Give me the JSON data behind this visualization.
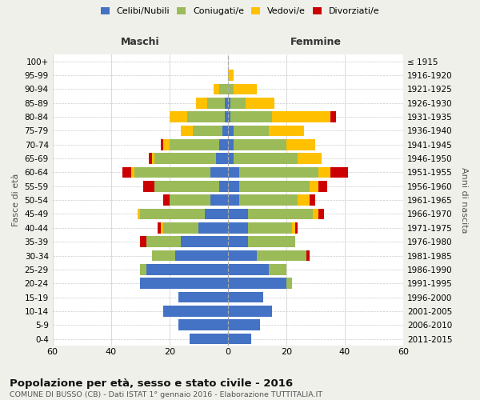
{
  "age_groups": [
    "0-4",
    "5-9",
    "10-14",
    "15-19",
    "20-24",
    "25-29",
    "30-34",
    "35-39",
    "40-44",
    "45-49",
    "50-54",
    "55-59",
    "60-64",
    "65-69",
    "70-74",
    "75-79",
    "80-84",
    "85-89",
    "90-94",
    "95-99",
    "100+"
  ],
  "birth_years": [
    "2011-2015",
    "2006-2010",
    "2001-2005",
    "1996-2000",
    "1991-1995",
    "1986-1990",
    "1981-1985",
    "1976-1980",
    "1971-1975",
    "1966-1970",
    "1961-1965",
    "1956-1960",
    "1951-1955",
    "1946-1950",
    "1941-1945",
    "1936-1940",
    "1931-1935",
    "1926-1930",
    "1921-1925",
    "1916-1920",
    "≤ 1915"
  ],
  "maschi": {
    "celibi": [
      13,
      17,
      22,
      17,
      30,
      28,
      18,
      16,
      10,
      8,
      6,
      3,
      6,
      4,
      3,
      2,
      1,
      1,
      0,
      0,
      0
    ],
    "coniugati": [
      0,
      0,
      0,
      0,
      0,
      2,
      8,
      12,
      12,
      22,
      14,
      22,
      26,
      21,
      17,
      10,
      13,
      6,
      3,
      0,
      0
    ],
    "vedovi": [
      0,
      0,
      0,
      0,
      0,
      0,
      0,
      0,
      1,
      1,
      0,
      0,
      1,
      1,
      2,
      4,
      6,
      4,
      2,
      0,
      0
    ],
    "divorziati": [
      0,
      0,
      0,
      0,
      0,
      0,
      0,
      2,
      1,
      0,
      2,
      4,
      3,
      1,
      1,
      0,
      0,
      0,
      0,
      0,
      0
    ]
  },
  "femmine": {
    "nubili": [
      8,
      11,
      15,
      12,
      20,
      14,
      10,
      7,
      7,
      7,
      4,
      4,
      4,
      2,
      2,
      2,
      1,
      1,
      0,
      0,
      0
    ],
    "coniugate": [
      0,
      0,
      0,
      0,
      2,
      6,
      17,
      16,
      15,
      22,
      20,
      24,
      27,
      22,
      18,
      12,
      14,
      5,
      2,
      0,
      0
    ],
    "vedove": [
      0,
      0,
      0,
      0,
      0,
      0,
      0,
      0,
      1,
      2,
      4,
      3,
      4,
      8,
      10,
      12,
      20,
      10,
      8,
      2,
      0
    ],
    "divorziate": [
      0,
      0,
      0,
      0,
      0,
      0,
      1,
      0,
      1,
      2,
      2,
      3,
      6,
      0,
      0,
      0,
      2,
      0,
      0,
      0,
      0
    ]
  },
  "colors": {
    "celibi": "#4472c4",
    "coniugati": "#9bbb59",
    "vedovi": "#ffc000",
    "divorziati": "#cc0000"
  },
  "xlim": 60,
  "title": "Popolazione per età, sesso e stato civile - 2016",
  "subtitle": "COMUNE DI BUSSO (CB) - Dati ISTAT 1° gennaio 2016 - Elaborazione TUTTITALIA.IT",
  "ylabel_left": "Fasce di età",
  "ylabel_right": "Anni di nascita",
  "xlabel_left": "Maschi",
  "xlabel_right": "Femmine",
  "bg_color": "#f0f0eb",
  "bar_bg_color": "#ffffff"
}
